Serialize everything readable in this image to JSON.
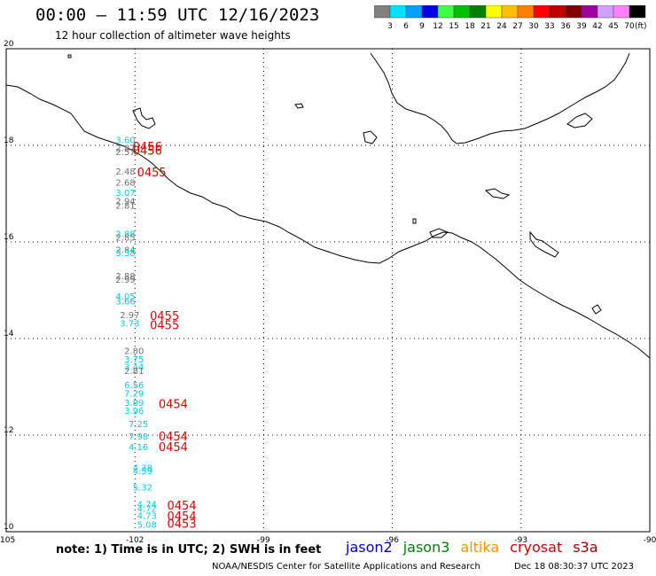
{
  "header": {
    "title": "00:00 – 11:59 UTC 12/16/2023",
    "subtitle": "12 hour collection of altimeter wave heights"
  },
  "colorbar": {
    "unit": "(ft)",
    "bins": [
      {
        "label": "3",
        "color": "#808080"
      },
      {
        "label": "6",
        "color": "#00e5ff"
      },
      {
        "label": "9",
        "color": "#00a0ff"
      },
      {
        "label": "12",
        "color": "#0000e0"
      },
      {
        "label": "15",
        "color": "#40ff40"
      },
      {
        "label": "18",
        "color": "#00c000"
      },
      {
        "label": "21",
        "color": "#008000"
      },
      {
        "label": "24",
        "color": "#ffff00"
      },
      {
        "label": "27",
        "color": "#ffc000"
      },
      {
        "label": "30",
        "color": "#ff8000"
      },
      {
        "label": "33",
        "color": "#ff0000"
      },
      {
        "label": "36",
        "color": "#c00000"
      },
      {
        "label": "39",
        "color": "#800000"
      },
      {
        "label": "42",
        "color": "#a000a0"
      },
      {
        "label": "45",
        "color": "#d0a0ff"
      },
      {
        "label": "70",
        "color": "#ff80ff"
      },
      {
        "label": "",
        "color": "#000000"
      }
    ]
  },
  "map": {
    "lon_ticks": [
      "-105",
      "-102",
      "-99",
      "-96",
      "-93",
      "-90"
    ],
    "lat_ticks": [
      "20",
      "18",
      "16",
      "14",
      "12",
      "10"
    ],
    "extent": {
      "lon": [
        -105,
        -90
      ],
      "lat": [
        10,
        20
      ]
    }
  },
  "observations": [
    {
      "lat": 18.12,
      "lon": -102.45,
      "text": "3.60",
      "color": "#00d0e0"
    },
    {
      "lat": 17.95,
      "lon": -102.45,
      "text": "2.87",
      "color": "#707070"
    },
    {
      "lat": 17.87,
      "lon": -102.45,
      "text": "2.57",
      "color": "#707070"
    },
    {
      "lat": 17.47,
      "lon": -102.45,
      "text": "2.48",
      "color": "#707070"
    },
    {
      "lat": 17.24,
      "lon": -102.45,
      "text": "2.68",
      "color": "#707070"
    },
    {
      "lat": 17.03,
      "lon": -102.45,
      "text": "3.07",
      "color": "#00d0e0"
    },
    {
      "lat": 16.85,
      "lon": -102.45,
      "text": "2.94",
      "color": "#707070"
    },
    {
      "lat": 16.76,
      "lon": -102.45,
      "text": "2.81",
      "color": "#707070"
    },
    {
      "lat": 16.17,
      "lon": -102.45,
      "text": "2.88",
      "color": "#00d0e0"
    },
    {
      "lat": 16.1,
      "lon": -102.45,
      "text": "2.85",
      "color": "#707070"
    },
    {
      "lat": 15.84,
      "lon": -102.45,
      "text": "2.84",
      "color": "#707070"
    },
    {
      "lat": 15.78,
      "lon": -102.45,
      "text": "3.38",
      "color": "#00d0e0"
    },
    {
      "lat": 15.3,
      "lon": -102.45,
      "text": "2.88",
      "color": "#707070"
    },
    {
      "lat": 15.23,
      "lon": -102.45,
      "text": "2.99",
      "color": "#707070"
    },
    {
      "lat": 14.88,
      "lon": -102.45,
      "text": "4.05",
      "color": "#00d0e0"
    },
    {
      "lat": 14.78,
      "lon": -102.45,
      "text": "3.66",
      "color": "#00d0e0"
    },
    {
      "lat": 14.5,
      "lon": -102.35,
      "text": "2.97",
      "color": "#707070"
    },
    {
      "lat": 14.32,
      "lon": -102.35,
      "text": "3.73",
      "color": "#00d0e0"
    },
    {
      "lat": 13.75,
      "lon": -102.25,
      "text": "2.80",
      "color": "#707070"
    },
    {
      "lat": 13.58,
      "lon": -102.25,
      "text": "3.75",
      "color": "#00d0e0"
    },
    {
      "lat": 13.42,
      "lon": -102.25,
      "text": "3.44",
      "color": "#00d0e0"
    },
    {
      "lat": 13.34,
      "lon": -102.25,
      "text": "2.81",
      "color": "#707070"
    },
    {
      "lat": 13.05,
      "lon": -102.25,
      "text": "6.56",
      "color": "#00d0e0"
    },
    {
      "lat": 12.87,
      "lon": -102.25,
      "text": "7.29",
      "color": "#00d0e0"
    },
    {
      "lat": 12.68,
      "lon": -102.25,
      "text": "3.89",
      "color": "#00d0e0"
    },
    {
      "lat": 12.51,
      "lon": -102.25,
      "text": "3.96",
      "color": "#00d0e0"
    },
    {
      "lat": 12.24,
      "lon": -102.15,
      "text": "7.25",
      "color": "#00d0e0"
    },
    {
      "lat": 11.98,
      "lon": -102.15,
      "text": "7.98",
      "color": "#00d0e0"
    },
    {
      "lat": 11.76,
      "lon": -102.15,
      "text": "4.16",
      "color": "#00d0e0"
    },
    {
      "lat": 11.33,
      "lon": -102.05,
      "text": "4.38",
      "color": "#00d0e0"
    },
    {
      "lat": 11.27,
      "lon": -102.05,
      "text": "4.59",
      "color": "#00d0e0"
    },
    {
      "lat": 10.93,
      "lon": -102.05,
      "text": "5.32",
      "color": "#00d0e0"
    },
    {
      "lat": 10.58,
      "lon": -101.95,
      "text": "4.74",
      "color": "#00d0e0"
    },
    {
      "lat": 10.49,
      "lon": -101.95,
      "text": "4.72",
      "color": "#00d0e0"
    },
    {
      "lat": 10.34,
      "lon": -101.95,
      "text": "4.73",
      "color": "#00d0e0"
    },
    {
      "lat": 10.16,
      "lon": -101.95,
      "text": "5.08",
      "color": "#00d0e0"
    }
  ],
  "time_labels": [
    {
      "lat": 17.98,
      "lon": -102.05,
      "text": "0456"
    },
    {
      "lat": 17.9,
      "lon": -102.05,
      "text": "0456"
    },
    {
      "lat": 17.45,
      "lon": -101.95,
      "text": "0455"
    },
    {
      "lat": 14.48,
      "lon": -101.65,
      "text": "0455"
    },
    {
      "lat": 14.28,
      "lon": -101.65,
      "text": "0455"
    },
    {
      "lat": 12.65,
      "lon": -101.45,
      "text": "0454"
    },
    {
      "lat": 11.98,
      "lon": -101.45,
      "text": "0454"
    },
    {
      "lat": 11.76,
      "lon": -101.45,
      "text": "0454"
    },
    {
      "lat": 10.55,
      "lon": -101.25,
      "text": "0454"
    },
    {
      "lat": 10.33,
      "lon": -101.25,
      "text": "0454"
    },
    {
      "lat": 10.17,
      "lon": -101.25,
      "text": "0453"
    }
  ],
  "time_label_color": "#e00000",
  "note": "note: 1) Time is in UTC; 2) SWH is in feet",
  "satellites": [
    {
      "name": "jason2",
      "color": "#0000d0"
    },
    {
      "name": "jason3",
      "color": "#008000"
    },
    {
      "name": "altika",
      "color": "#ff9000"
    },
    {
      "name": "cryosat",
      "color": "#d00000"
    },
    {
      "name": "s3a",
      "color": "#a00000"
    }
  ],
  "footer": {
    "credit": "NOAA/NESDIS Center for Satellite Applications and Research",
    "timestamp": "Dec 18 08:30:37 UTC 2023"
  }
}
